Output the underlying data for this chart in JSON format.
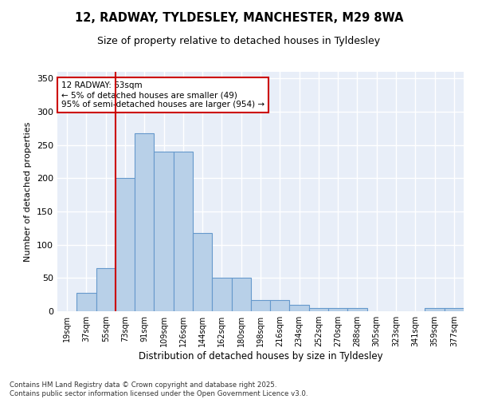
{
  "title1": "12, RADWAY, TYLDESLEY, MANCHESTER, M29 8WA",
  "title2": "Size of property relative to detached houses in Tyldesley",
  "xlabel": "Distribution of detached houses by size in Tyldesley",
  "ylabel": "Number of detached properties",
  "categories": [
    "19sqm",
    "37sqm",
    "55sqm",
    "73sqm",
    "91sqm",
    "109sqm",
    "126sqm",
    "144sqm",
    "162sqm",
    "180sqm",
    "198sqm",
    "216sqm",
    "234sqm",
    "252sqm",
    "270sqm",
    "288sqm",
    "305sqm",
    "323sqm",
    "341sqm",
    "359sqm",
    "377sqm"
  ],
  "values": [
    0,
    28,
    65,
    200,
    268,
    240,
    240,
    118,
    50,
    50,
    17,
    17,
    10,
    5,
    5,
    5,
    0,
    0,
    0,
    5,
    5
  ],
  "bar_color": "#b8d0e8",
  "bar_edge_color": "#6699cc",
  "bg_color": "#e8eef8",
  "grid_color": "#ffffff",
  "vline_x": 2.5,
  "vline_color": "#cc0000",
  "annotation_text": "12 RADWAY: 63sqm\n← 5% of detached houses are smaller (49)\n95% of semi-detached houses are larger (954) →",
  "annotation_box_color": "#cc0000",
  "footer": "Contains HM Land Registry data © Crown copyright and database right 2025.\nContains public sector information licensed under the Open Government Licence v3.0.",
  "ylim": [
    0,
    360
  ],
  "yticks": [
    0,
    50,
    100,
    150,
    200,
    250,
    300,
    350
  ],
  "fig_width": 6.0,
  "fig_height": 5.0,
  "dpi": 100
}
